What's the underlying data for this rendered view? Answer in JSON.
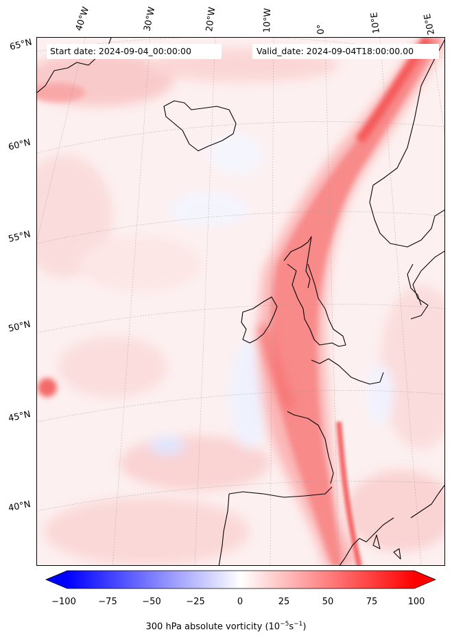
{
  "header": {
    "start_date": "Start date: 2024-09-04_00:00:00",
    "valid_date": "Valid_date: 2024-09-04T18:00:00.00"
  },
  "map": {
    "projection": "lambert-conformal",
    "region": "North Atlantic / Western Europe",
    "longitude_labels": [
      "40°W",
      "30°W",
      "20°W",
      "10°W",
      "0°",
      "10°E",
      "20°E"
    ],
    "latitude_labels": [
      "65°N",
      "60°N",
      "55°N",
      "50°N",
      "45°N",
      "40°N"
    ],
    "field": "300 hPa absolute vorticity",
    "features": [
      "jet-streak-vorticity-band",
      "coastlines",
      "graticule"
    ]
  },
  "colorbar": {
    "label_text": "300 hPa absolute vorticity (10",
    "label_unit_1": "−5",
    "label_mid": "s",
    "label_unit_2": "−1",
    "label_close": ")",
    "ticks": [
      "−100",
      "−75",
      "−50",
      "−25",
      "0",
      "25",
      "50",
      "75",
      "100"
    ],
    "min": -100,
    "max": 100,
    "low_color": "#0000ff",
    "mid_color": "#ffffff",
    "high_color": "#ff0000",
    "extend": "both"
  }
}
